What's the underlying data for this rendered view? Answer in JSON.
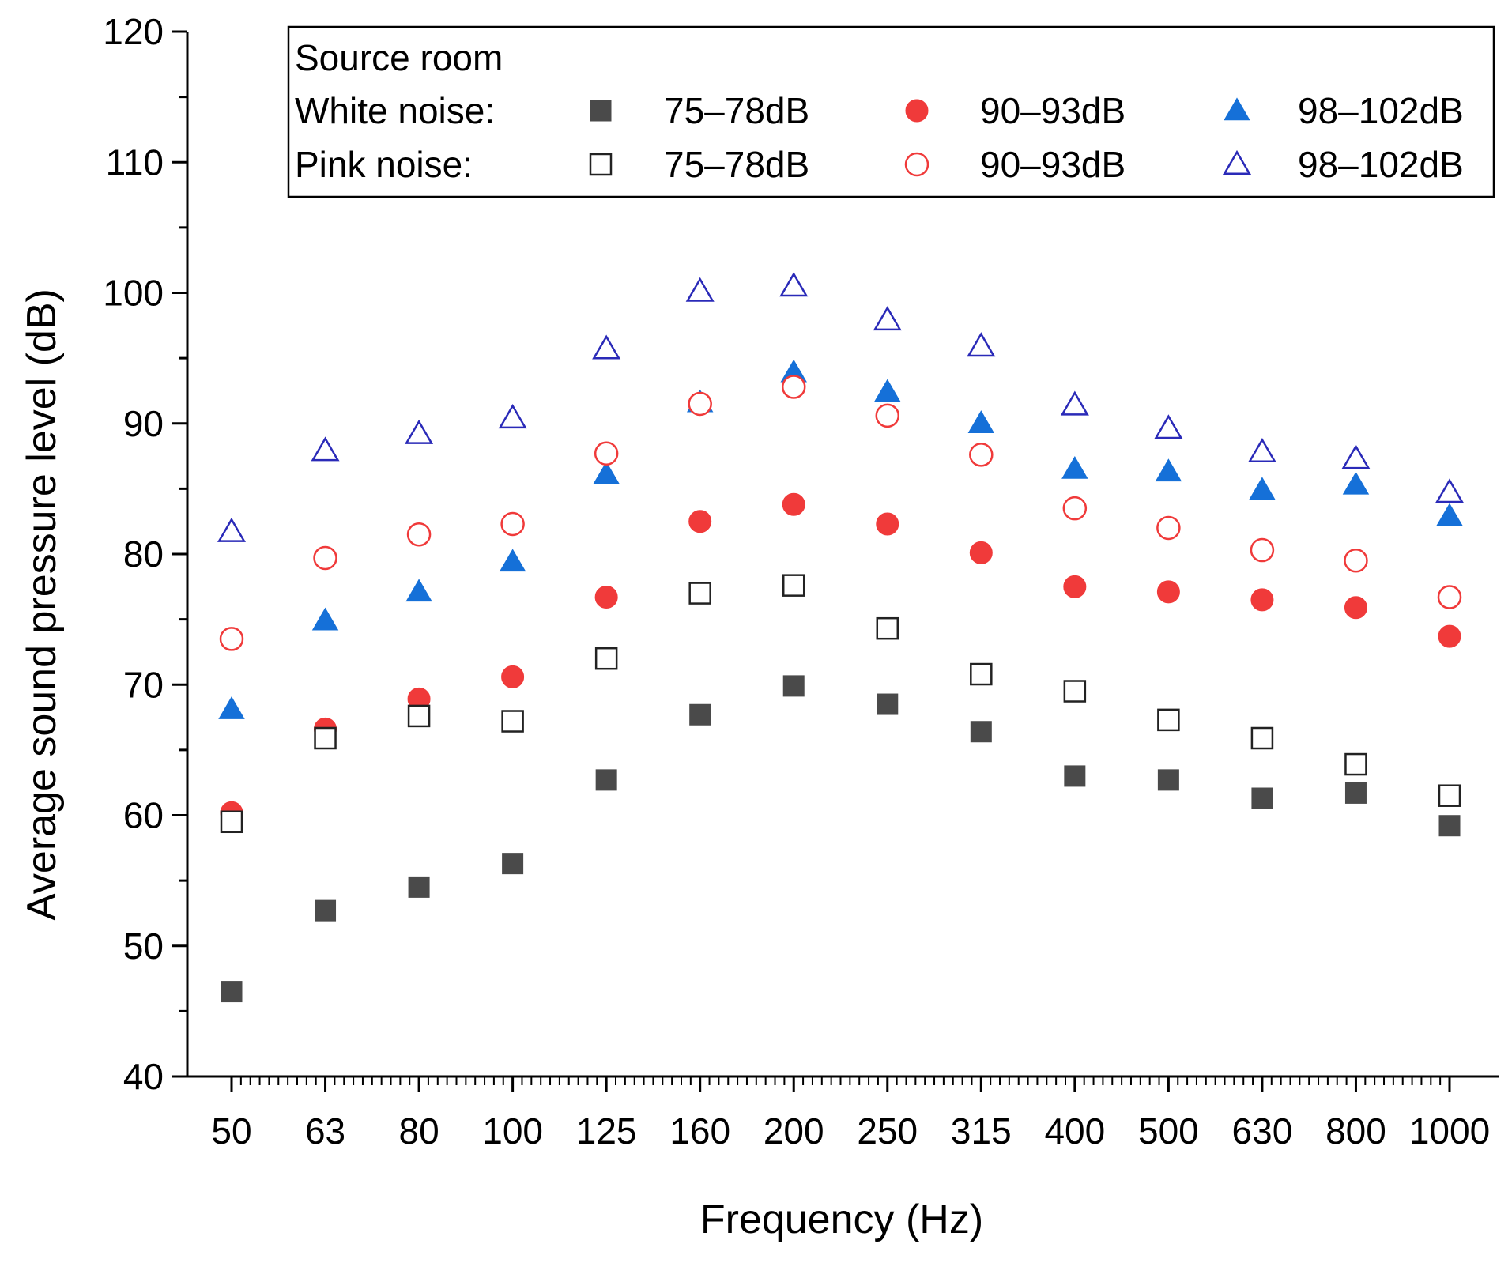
{
  "chart_data": {
    "type": "scatter",
    "title": "",
    "xlabel": "Frequency (Hz)",
    "ylabel": "Average sound pressure level (dB)",
    "categories": [
      "50",
      "63",
      "80",
      "100",
      "125",
      "160",
      "200",
      "250",
      "315",
      "400",
      "500",
      "630",
      "800",
      "1000"
    ],
    "ylim": [
      40,
      120
    ],
    "yticks": [
      "40",
      "50",
      "60",
      "70",
      "80",
      "90",
      "100",
      "110",
      "120"
    ],
    "legend": {
      "title": "Source room",
      "placement": "top-right",
      "rows": [
        {
          "label": "White noise:",
          "entries": [
            "75–78dB",
            "90–93dB",
            "98–102dB"
          ]
        },
        {
          "label": "Pink noise:",
          "entries": [
            "75–78dB",
            "90–93dB",
            "98–102dB"
          ]
        }
      ]
    },
    "series": [
      {
        "name": "White noise 75–78dB",
        "marker": "square",
        "filled": true,
        "color": "#4a4a4a",
        "values": [
          46.5,
          52.7,
          54.5,
          56.3,
          62.7,
          67.7,
          69.9,
          68.5,
          66.4,
          63.0,
          62.7,
          61.3,
          61.7,
          59.2
        ]
      },
      {
        "name": "White noise 90–93dB",
        "marker": "circle",
        "filled": true,
        "color": "#f03a3a",
        "values": [
          60.2,
          66.6,
          68.9,
          70.6,
          76.7,
          82.5,
          83.8,
          82.3,
          80.1,
          77.5,
          77.1,
          76.5,
          75.9,
          73.7
        ]
      },
      {
        "name": "White noise 98–102dB",
        "marker": "triangle",
        "filled": true,
        "color": "#1570d8",
        "values": [
          68.1,
          74.9,
          77.1,
          79.4,
          86.1,
          91.6,
          93.9,
          92.4,
          90.0,
          86.5,
          86.3,
          84.9,
          85.3,
          82.9
        ]
      },
      {
        "name": "Pink noise 75–78dB",
        "marker": "square",
        "filled": false,
        "color": "#222222",
        "values": [
          59.5,
          65.9,
          67.6,
          67.2,
          72.0,
          77.0,
          77.6,
          74.3,
          70.8,
          69.5,
          67.3,
          65.9,
          63.9,
          61.5
        ]
      },
      {
        "name": "Pink noise 90–93dB",
        "marker": "circle",
        "filled": false,
        "color": "#f03a3a",
        "values": [
          73.5,
          79.7,
          81.5,
          82.3,
          87.7,
          91.5,
          92.8,
          90.6,
          87.6,
          83.5,
          82.0,
          80.3,
          79.5,
          76.7
        ]
      },
      {
        "name": "Pink noise 98–102dB",
        "marker": "triangle",
        "filled": false,
        "color": "#2a2ab8",
        "values": [
          81.7,
          87.9,
          89.2,
          90.4,
          95.7,
          100.1,
          100.5,
          97.9,
          95.9,
          91.4,
          89.6,
          87.8,
          87.3,
          84.7
        ]
      }
    ]
  }
}
